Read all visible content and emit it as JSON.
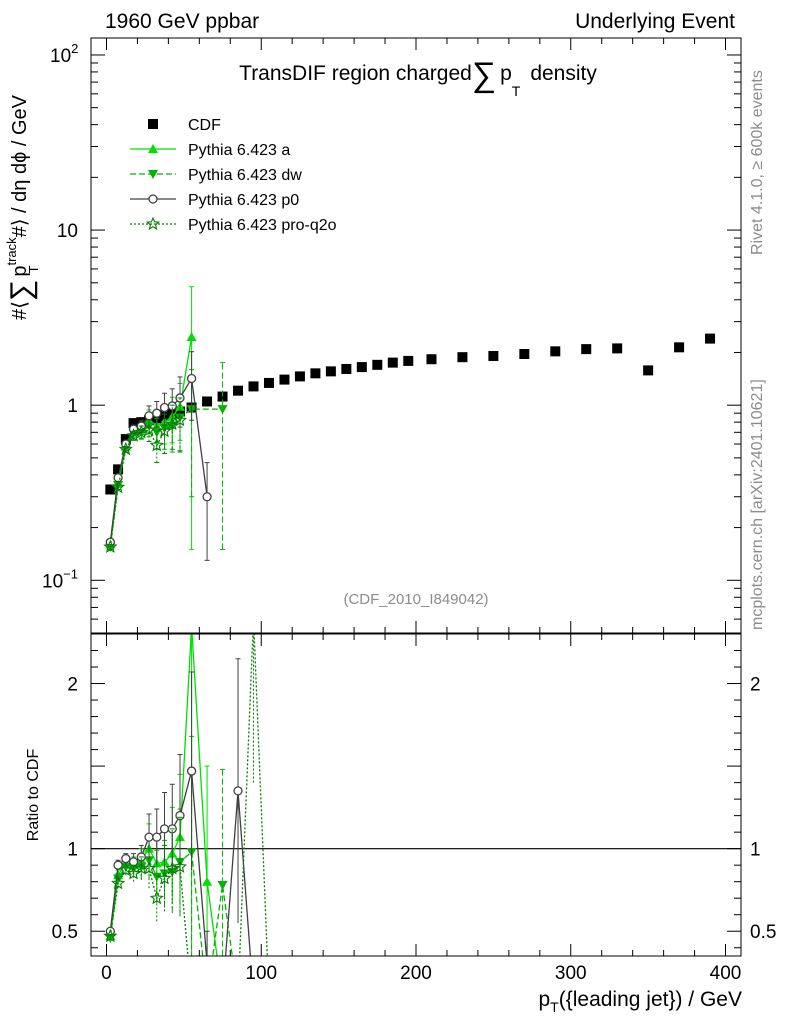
{
  "header": {
    "left": "1960 GeV ppbar",
    "right": "Underlying Event"
  },
  "side": {
    "rivet": "Rivet 4.1.0, ≥ 600k events",
    "mcplots": "mcplots.cern.ch [arXiv:2401.10621]"
  },
  "chart_data": {
    "type": "scatter",
    "title_parts": {
      "pre": "TransDIF region charged",
      "sum": "∑",
      "p": "p",
      "sub": "T",
      "post": "density"
    },
    "analysis_label": "(CDF_2010_I849042)",
    "xlabel_parts": {
      "p": "p",
      "sub": "T",
      "rest": "({leading jet}) / GeV"
    },
    "ylabel_parts": {
      "pre": "#⟨",
      "sum": "∑",
      "p": "p",
      "sup": "track",
      "sub": "T",
      "post": "#⟩ / dη dϕ / GeV"
    },
    "ratio_ylabel": "Ratio to CDF",
    "xlim": [
      -10,
      410
    ],
    "ylim_main": [
      0.05,
      125
    ],
    "ylim_ratio": [
      0.35,
      2.3
    ],
    "x_ticks": [
      0,
      100,
      200,
      300,
      400
    ],
    "x_tick_labels": [
      "0",
      "100",
      "200",
      "300",
      "400"
    ],
    "main_tick_labels": [
      {
        "v": 0.1,
        "base": "10",
        "exp": "−1"
      },
      {
        "v": 1,
        "base": "1",
        "exp": ""
      },
      {
        "v": 10,
        "base": "10",
        "exp": ""
      },
      {
        "v": 100,
        "base": "10",
        "exp": "2"
      }
    ],
    "ratio_tick_labels": [
      {
        "v": 0.5,
        "label": "0.5"
      },
      {
        "v": 1,
        "label": "1"
      },
      {
        "v": 2,
        "label": "2"
      }
    ],
    "legend": [
      {
        "key": "cdf",
        "label": "CDF"
      },
      {
        "key": "a",
        "label": "Pythia 6.423 a"
      },
      {
        "key": "dw",
        "label": "Pythia 6.423 dw"
      },
      {
        "key": "p0",
        "label": "Pythia 6.423 p0"
      },
      {
        "key": "q2o",
        "label": "Pythia 6.423 pro-q2o"
      }
    ],
    "colors": {
      "a": "#00e000",
      "dw": "#00b400",
      "p0": "#404040",
      "q2o": "#008000",
      "data": "#000000"
    },
    "series": [
      {
        "key": "cdf",
        "name": "CDF",
        "x": [
          2.5,
          7.5,
          12.5,
          17.5,
          22.5,
          27.5,
          32.5,
          37.5,
          42.5,
          47.5,
          55,
          65,
          75,
          85,
          95,
          105,
          115,
          125,
          135,
          145,
          155,
          165,
          175,
          185,
          195,
          210,
          230,
          250,
          270,
          290,
          310,
          330,
          350,
          370,
          390
        ],
        "y": [
          0.33,
          0.43,
          0.64,
          0.79,
          0.8,
          0.82,
          0.84,
          0.87,
          0.89,
          0.92,
          0.97,
          1.05,
          1.12,
          1.21,
          1.28,
          1.34,
          1.4,
          1.46,
          1.52,
          1.56,
          1.61,
          1.65,
          1.7,
          1.75,
          1.79,
          1.83,
          1.88,
          1.91,
          1.96,
          2.03,
          2.09,
          2.11,
          1.58,
          2.14,
          2.4
        ]
      },
      {
        "key": "a",
        "name": "Pythia 6.423 a",
        "x": [
          2.5,
          7.5,
          12.5,
          17.5,
          22.5,
          27.5,
          32.5,
          37.5,
          42.5,
          47.5,
          55
        ],
        "y": [
          0.16,
          0.36,
          0.58,
          0.71,
          0.74,
          0.82,
          0.76,
          0.8,
          0.86,
          0.98,
          2.45
        ],
        "err": [
          0.005,
          0.01,
          0.02,
          0.04,
          0.06,
          0.12,
          0.15,
          0.2,
          0.25,
          0.35,
          2.3
        ]
      },
      {
        "key": "dw",
        "name": "Pythia 6.423 dw",
        "x": [
          2.5,
          7.5,
          12.5,
          17.5,
          22.5,
          27.5,
          32.5,
          37.5,
          42.5,
          47.5,
          55,
          75
        ],
        "y": [
          0.155,
          0.35,
          0.57,
          0.69,
          0.71,
          0.76,
          0.7,
          0.74,
          0.76,
          0.85,
          0.95,
          0.95
        ],
        "err": [
          0.005,
          0.01,
          0.02,
          0.04,
          0.06,
          0.1,
          0.14,
          0.18,
          0.22,
          0.3,
          0.65,
          0.8
        ]
      },
      {
        "key": "p0",
        "name": "Pythia 6.423 p0",
        "x": [
          2.5,
          7.5,
          12.5,
          17.5,
          22.5,
          27.5,
          32.5,
          37.5,
          42.5,
          47.5,
          55,
          65
        ],
        "y": [
          0.165,
          0.385,
          0.6,
          0.73,
          0.76,
          0.87,
          0.9,
          0.97,
          0.99,
          1.1,
          1.42,
          0.3
        ],
        "err": [
          0.005,
          0.01,
          0.02,
          0.04,
          0.06,
          0.12,
          0.15,
          0.2,
          0.25,
          0.35,
          0.6,
          0.17
        ]
      },
      {
        "key": "q2o",
        "name": "Pythia 6.423 pro-q2o",
        "x": [
          2.5,
          7.5,
          12.5,
          17.5,
          22.5,
          27.5,
          32.5,
          37.5,
          42.5,
          47.5
        ],
        "y": [
          0.155,
          0.34,
          0.56,
          0.67,
          0.7,
          0.72,
          0.59,
          0.71,
          0.78,
          0.82
        ],
        "err": [
          0.005,
          0.01,
          0.02,
          0.04,
          0.06,
          0.1,
          0.12,
          0.18,
          0.22,
          0.28
        ]
      }
    ],
    "ratio_series": [
      {
        "key": "a",
        "x": [
          2.5,
          7.5,
          12.5,
          17.5,
          22.5,
          27.5,
          32.5,
          37.5,
          42.5,
          47.5,
          55,
          65,
          75,
          85
        ],
        "y": [
          0.47,
          0.84,
          0.91,
          0.9,
          0.93,
          1.0,
          0.91,
          0.92,
          0.97,
          1.07,
          2.35,
          0.8,
          0.1,
          0.1
        ],
        "err": [
          0.01,
          0.03,
          0.03,
          0.05,
          0.07,
          0.15,
          0.18,
          0.22,
          0.28,
          0.38,
          2.3,
          0.7,
          0.5,
          0.5
        ]
      },
      {
        "key": "dw",
        "x": [
          2.5,
          7.5,
          12.5,
          17.5,
          22.5,
          27.5,
          32.5,
          37.5,
          42.5,
          47.5,
          55,
          65,
          75,
          85
        ],
        "y": [
          0.46,
          0.82,
          0.89,
          0.88,
          0.89,
          0.93,
          0.83,
          0.85,
          0.86,
          0.92,
          0.98,
          0.1,
          0.78,
          0.1
        ],
        "err": [
          0.01,
          0.03,
          0.03,
          0.05,
          0.07,
          0.12,
          0.16,
          0.2,
          0.25,
          0.32,
          0.7,
          0.5,
          0.7,
          0.5
        ]
      },
      {
        "key": "p0",
        "x": [
          2.5,
          7.5,
          12.5,
          17.5,
          22.5,
          27.5,
          32.5,
          37.5,
          42.5,
          47.5,
          55,
          65,
          75,
          85,
          95
        ],
        "y": [
          0.5,
          0.9,
          0.94,
          0.92,
          0.95,
          1.07,
          1.07,
          1.12,
          1.12,
          1.2,
          1.47,
          0.3,
          0.1,
          1.35,
          0.1
        ],
        "err": [
          0.01,
          0.03,
          0.03,
          0.05,
          0.07,
          0.14,
          0.17,
          0.22,
          0.27,
          0.37,
          0.6,
          0.2,
          0.5,
          0.8,
          0.5
        ]
      },
      {
        "key": "q2o",
        "x": [
          2.5,
          7.5,
          12.5,
          17.5,
          22.5,
          27.5,
          32.5,
          37.5,
          42.5,
          47.5,
          55,
          65,
          75,
          85,
          95,
          105
        ],
        "y": [
          0.47,
          0.79,
          0.87,
          0.85,
          0.88,
          0.88,
          0.7,
          0.82,
          0.88,
          0.89,
          0.1,
          0.1,
          0.1,
          0.1,
          2.4,
          0.1
        ],
        "err": [
          0.01,
          0.03,
          0.03,
          0.05,
          0.07,
          0.12,
          0.14,
          0.2,
          0.24,
          0.3,
          0.5,
          0.5,
          0.5,
          0.5,
          1.0,
          0.5
        ]
      }
    ]
  }
}
